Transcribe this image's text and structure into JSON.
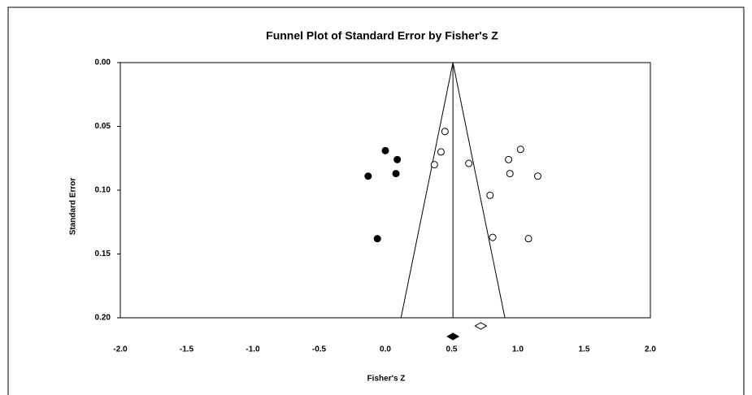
{
  "chart_data": {
    "type": "scatter",
    "title": "Funnel Plot of Standard Error by Fisher's Z",
    "x_label": "Fisher's Z",
    "y_label": "Standard Error",
    "xlim": [
      -2,
      2
    ],
    "xticks": [
      {
        "value": -2,
        "label": "-2.0"
      },
      -1.5,
      {
        "value": -1,
        "label": "-1.0"
      },
      -0.5,
      {
        "value": 0,
        "label": "0.0"
      },
      0.5,
      {
        "value": 1,
        "label": "1.0"
      },
      1.5,
      {
        "value": 2,
        "label": "2.0"
      }
    ],
    "ylim": [
      0,
      0.2
    ],
    "y_inverted": true,
    "yticks": [
      {
        "value": 0,
        "label": "0.00"
      },
      0.05,
      {
        "value": 0.1,
        "label": "0.10"
      },
      0.15,
      {
        "value": 0.2,
        "label": "0.20"
      }
    ],
    "series": [
      {
        "color": "#ffffff",
        "stroke": "#000000",
        "x": [
          0.45,
          0.42,
          0.37,
          0.63,
          0.79,
          0.81,
          0.93,
          0.94,
          1.02,
          1.15,
          1.08
        ],
        "y": [
          0.054,
          0.07,
          0.08,
          0.079,
          0.104,
          0.137,
          0.076,
          0.087,
          0.068,
          0.089,
          0.138
        ]
      },
      {
        "color": "#000000",
        "stroke": "#000000",
        "x": [
          0.0,
          0.09,
          -0.13,
          0.08,
          -0.06
        ],
        "y": [
          0.069,
          0.076,
          0.089,
          0.087,
          0.138
        ]
      }
    ],
    "summary_points": [
      {
        "x": 0.72,
        "color": "#ffffff"
      },
      {
        "x": 0.51,
        "color": "#000000"
      }
    ],
    "mean_line": 0.51,
    "funnel_lines": [
      {
        "x": [
          0.51,
          0.118
        ],
        "y": [
          0,
          0.2
        ]
      },
      {
        "x": [
          0.51,
          0.902
        ],
        "y": [
          0,
          0.2
        ]
      }
    ]
  }
}
